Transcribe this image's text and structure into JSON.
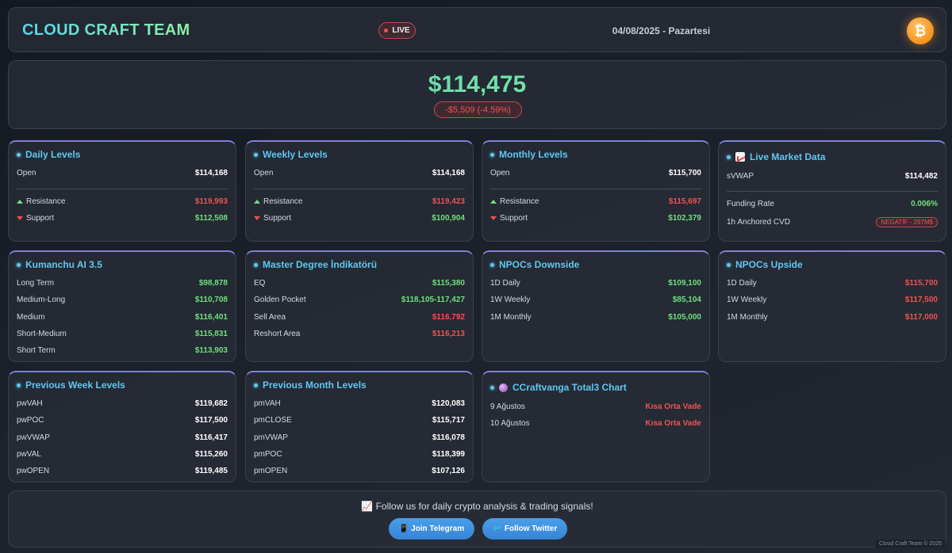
{
  "header": {
    "brand": "CLOUD CRAFT TEAM",
    "live": "LIVE",
    "date": "04/08/2025 - Pazartesi",
    "btc_symbol": "₿"
  },
  "price": {
    "value": "$114,475",
    "change": "-$5,509 (-4.59%)"
  },
  "daily": {
    "title": "Daily Levels",
    "open_label": "Open",
    "open": "$114,168",
    "resistance_label": "Resistance",
    "resistance": "$119,993",
    "support_label": "Support",
    "support": "$112,508"
  },
  "weekly": {
    "title": "Weekly Levels",
    "open_label": "Open",
    "open": "$114,168",
    "resistance_label": "Resistance",
    "resistance": "$119,423",
    "support_label": "Support",
    "support": "$100,904"
  },
  "monthly": {
    "title": "Monthly Levels",
    "open_label": "Open",
    "open": "$115,700",
    "resistance_label": "Resistance",
    "resistance": "$115,697",
    "support_label": "Support",
    "support": "$102,379"
  },
  "live_market": {
    "title": "Live Market Data",
    "svwap_label": "sVWAP",
    "svwap": "$114,482",
    "funding_label": "Funding Rate",
    "funding": "0.006%",
    "cvd_label": "1h Anchored CVD",
    "cvd": "NEGATİF - 297M$"
  },
  "kumanchu": {
    "title": "Kumanchu AI 3.5",
    "rows": [
      {
        "label": "Long Term",
        "value": "$98,878"
      },
      {
        "label": "Medium-Long",
        "value": "$110,708"
      },
      {
        "label": "Medium",
        "value": "$116,401"
      },
      {
        "label": "Short-Medium",
        "value": "$115,831"
      },
      {
        "label": "Short Term",
        "value": "$113,903"
      }
    ]
  },
  "master": {
    "title": "Master Degree İndikatörü",
    "rows": [
      {
        "label": "EQ",
        "value": "$115,380"
      },
      {
        "label": "Golden Pocket",
        "value": "$118,105-117,427"
      },
      {
        "label": "Sell Area",
        "value": "$116,792"
      },
      {
        "label": "Reshort Area",
        "value": "$116,213"
      }
    ]
  },
  "npoc_down": {
    "title": "NPOCs Downside",
    "rows": [
      {
        "label": "1D Daily",
        "value": "$109,100"
      },
      {
        "label": "1W Weekly",
        "value": "$85,104"
      },
      {
        "label": "1M Monthly",
        "value": "$105,000"
      }
    ]
  },
  "npoc_up": {
    "title": "NPOCs Upside",
    "rows": [
      {
        "label": "1D Daily",
        "value": "$115,700"
      },
      {
        "label": "1W Weekly",
        "value": "$117,500"
      },
      {
        "label": "1M Monthly",
        "value": "$117,000"
      }
    ]
  },
  "prev_week": {
    "title": "Previous Week Levels",
    "rows": [
      {
        "label": "pwVAH",
        "value": "$119,682"
      },
      {
        "label": "pwPOC",
        "value": "$117,500"
      },
      {
        "label": "pwVWAP",
        "value": "$116,417"
      },
      {
        "label": "pwVAL",
        "value": "$115,260"
      },
      {
        "label": "pwOPEN",
        "value": "$119,485"
      }
    ]
  },
  "prev_month": {
    "title": "Previous Month Levels",
    "rows": [
      {
        "label": "pmVAH",
        "value": "$120,083"
      },
      {
        "label": "pmCLOSE",
        "value": "$115,717"
      },
      {
        "label": "pmVWAP",
        "value": "$116,078"
      },
      {
        "label": "pmPOC",
        "value": "$118,399"
      },
      {
        "label": "pmOPEN",
        "value": "$107,126"
      }
    ]
  },
  "total3": {
    "title": "CCraftvanga Total3 Chart",
    "rows": [
      {
        "label": "9 Ağustos",
        "value": "Kısa Orta Vade"
      },
      {
        "label": "10 Ağustos",
        "value": "Kısa Orta Vade"
      }
    ]
  },
  "footer": {
    "text": "📈 Follow us for daily crypto analysis & trading signals!",
    "telegram": "📱 Join Telegram",
    "twitter": "🐦 Follow Twitter",
    "copyright": "Cloud Craft Team © 2025"
  },
  "colors": {
    "accent": "#5fc8f0",
    "positive": "#6ee07a",
    "negative": "#ef5350",
    "bitcoin": "#f7931a"
  }
}
